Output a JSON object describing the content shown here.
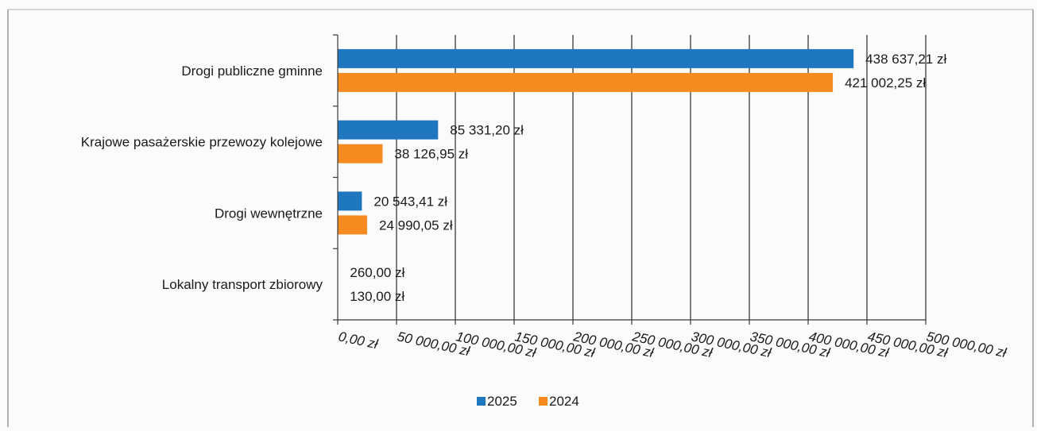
{
  "chart_data": {
    "type": "bar",
    "orientation": "horizontal",
    "categories": [
      "Drogi publiczne gminne",
      "Krajowe pasażerskie przewozy kolejowe",
      "Drogi wewnętrzne",
      "Lokalny transport zbiorowy"
    ],
    "series": [
      {
        "name": "2025",
        "color": "#1f77c0",
        "values": [
          438637.21,
          85331.2,
          20543.41,
          260.0
        ],
        "labels": [
          "438 637,21 zł",
          "85 331,20 zł",
          "20 543,41 zł",
          "260,00 zł"
        ]
      },
      {
        "name": "2024",
        "color": "#f58a1f",
        "values": [
          421002.25,
          38126.95,
          24990.05,
          130.0
        ],
        "labels": [
          "421 002,25 zł",
          "38 126,95 zł",
          "24 990,05 zł",
          "130,00 zł"
        ]
      }
    ],
    "xlim": [
      0,
      500000
    ],
    "x_ticks": [
      0,
      50000,
      100000,
      150000,
      200000,
      250000,
      300000,
      350000,
      400000,
      450000,
      500000
    ],
    "x_tick_labels": [
      "0,00 zł",
      "50 000,00 zł",
      "100 000,00 zł",
      "150 000,00 zł",
      "200 000,00 zł",
      "250 000,00 zł",
      "300 000,00 zł",
      "350 000,00 zł",
      "400 000,00 zł",
      "450 000,00 zł",
      "500 000,00 zł"
    ],
    "grid": "vertical",
    "legend": {
      "position": "bottom",
      "entries": [
        "2025",
        "2024"
      ]
    }
  }
}
